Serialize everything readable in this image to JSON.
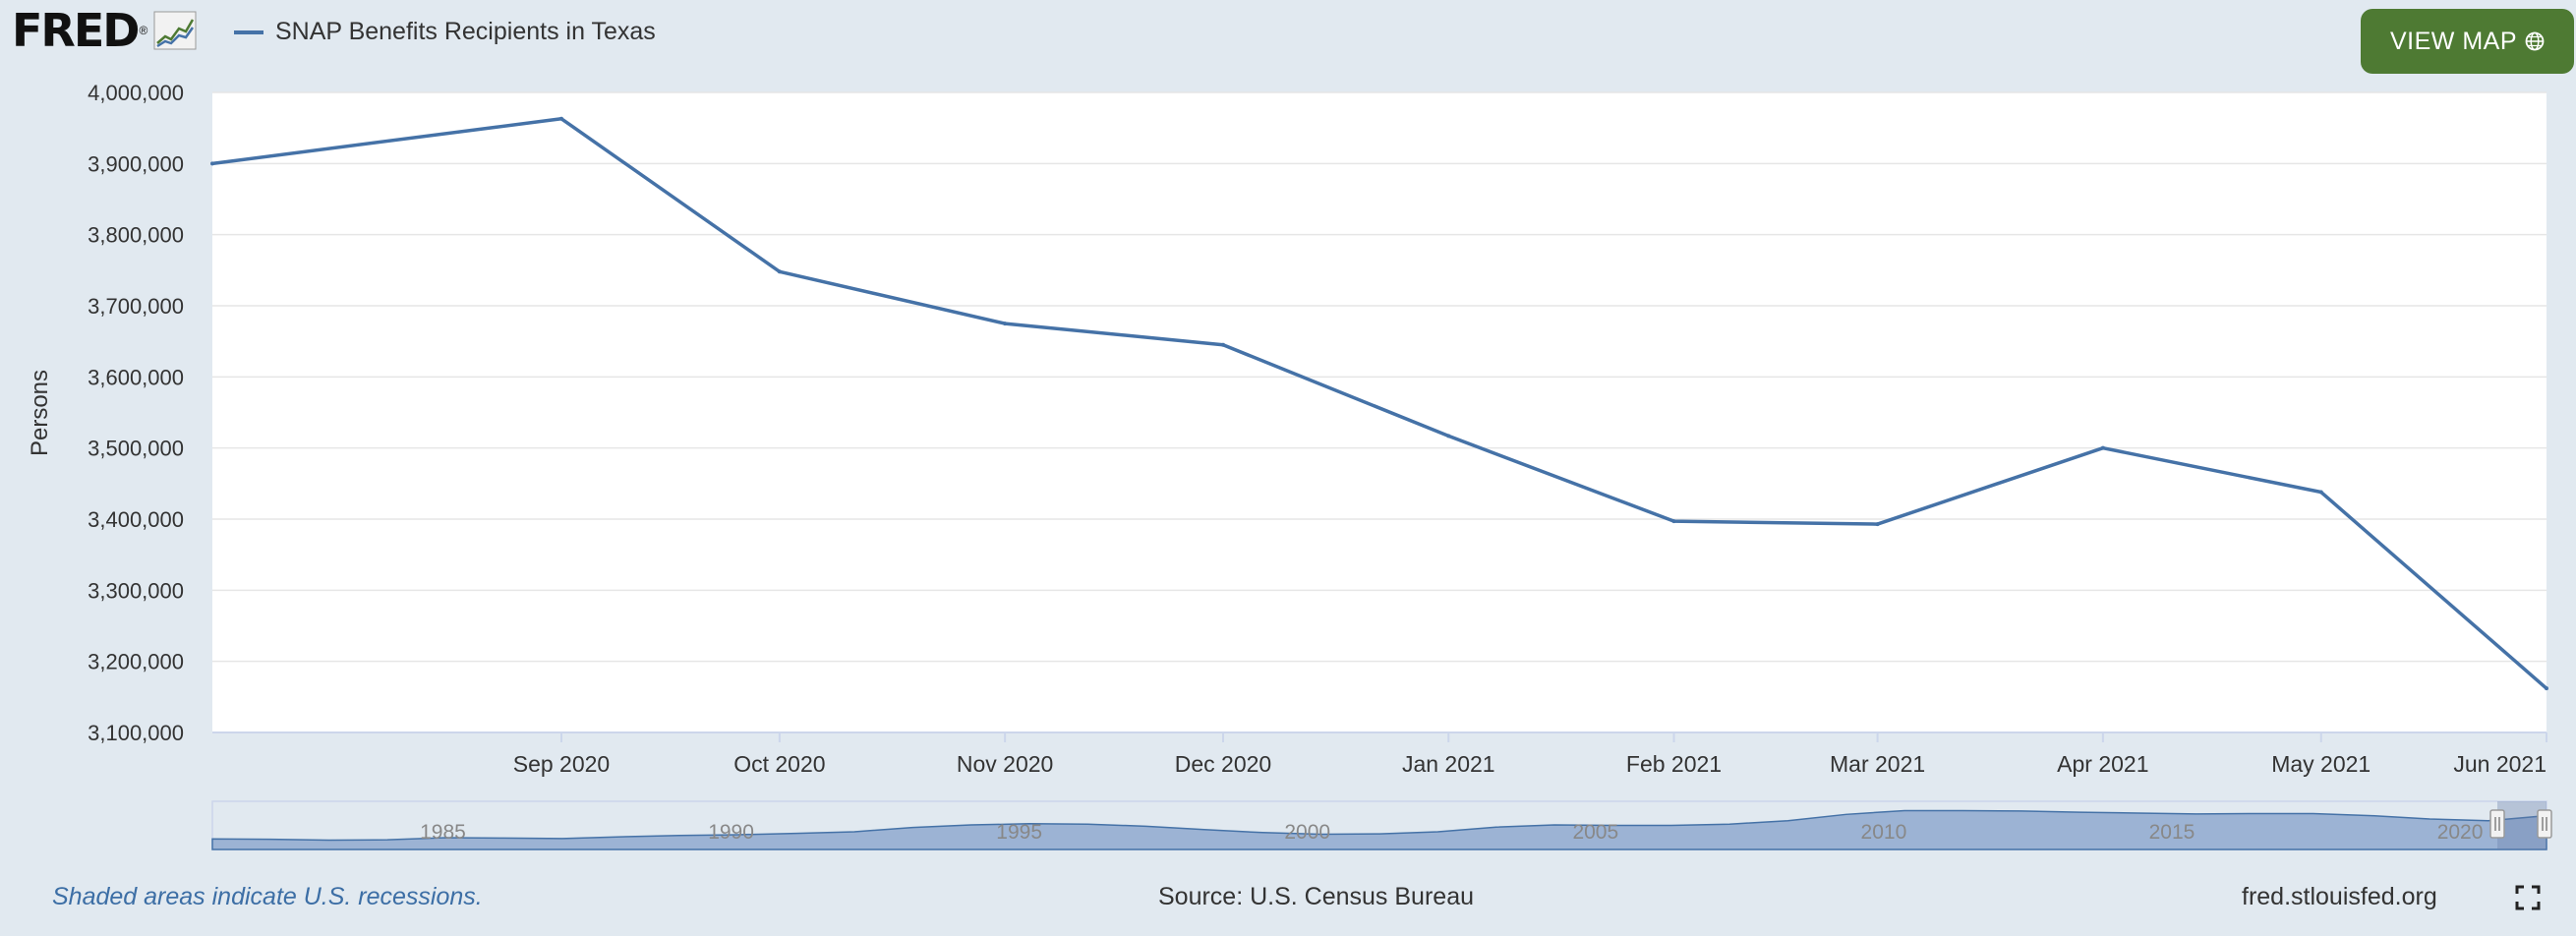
{
  "header": {
    "logo_text": "FRED",
    "logo_mark": "®",
    "view_map_label": "VIEW MAP"
  },
  "icons": {
    "logo": "line-chart-icon",
    "view_map": "globe-icon",
    "fullscreen": "fullscreen-icon"
  },
  "colors": {
    "series": "#4572a7",
    "background": "#e1e9f0",
    "plot": "#ffffff",
    "button": "#4e7a33",
    "navigator_fill": "#8fa9cf"
  },
  "footer": {
    "recession_note": "Shaded areas indicate U.S. recessions.",
    "source": "Source: U.S. Census Bureau",
    "url": "fred.stlouisfed.org"
  },
  "chart_data": {
    "type": "line",
    "title": "",
    "ylabel": "Persons",
    "xlabel": "",
    "ylim": [
      3100000,
      4000000
    ],
    "xlim": [
      "2020-07-15",
      "2021-06-01"
    ],
    "yticks": [
      3100000,
      3200000,
      3300000,
      3400000,
      3500000,
      3600000,
      3700000,
      3800000,
      3900000,
      4000000
    ],
    "ytick_labels": [
      "3,100,000",
      "3,200,000",
      "3,300,000",
      "3,400,000",
      "3,500,000",
      "3,600,000",
      "3,700,000",
      "3,800,000",
      "3,900,000",
      "4,000,000"
    ],
    "xticks": [
      "2020-09-01",
      "2020-10-01",
      "2020-11-01",
      "2020-12-01",
      "2021-01-01",
      "2021-02-01",
      "2021-03-01",
      "2021-04-01",
      "2021-05-01",
      "2021-06-01"
    ],
    "xtick_labels": [
      "Sep 2020",
      "Oct 2020",
      "Nov 2020",
      "Dec 2020",
      "Jan 2021",
      "Feb 2021",
      "Mar 2021",
      "Apr 2021",
      "May 2021",
      "Jun 2021"
    ],
    "grid": true,
    "legend": "top-left",
    "series": [
      {
        "name": "SNAP Benefits Recipients in Texas",
        "x": [
          "2020-07-15",
          "2020-09-01",
          "2020-10-01",
          "2020-11-01",
          "2020-12-01",
          "2021-01-01",
          "2021-02-01",
          "2021-03-01",
          "2021-04-01",
          "2021-05-01",
          "2021-06-01"
        ],
        "values": [
          3900000,
          3963000,
          3748000,
          3675000,
          3645000,
          3517000,
          3397000,
          3393000,
          3500000,
          3438000,
          3162000
        ]
      }
    ],
    "navigator": {
      "tick_labels": [
        "1985",
        "1990",
        "1995",
        "2000",
        "2005",
        "2010",
        "2015",
        "2020"
      ],
      "range_start": 1981,
      "range_end": 2021.5,
      "shape": [
        0.25,
        0.24,
        0.22,
        0.23,
        0.28,
        0.27,
        0.26,
        0.3,
        0.33,
        0.35,
        0.38,
        0.42,
        0.52,
        0.58,
        0.61,
        0.6,
        0.55,
        0.47,
        0.4,
        0.36,
        0.37,
        0.42,
        0.53,
        0.58,
        0.57,
        0.57,
        0.6,
        0.68,
        0.83,
        0.92,
        0.92,
        0.91,
        0.88,
        0.86,
        0.84,
        0.85,
        0.85,
        0.8,
        0.72,
        0.68,
        0.8
      ]
    }
  }
}
